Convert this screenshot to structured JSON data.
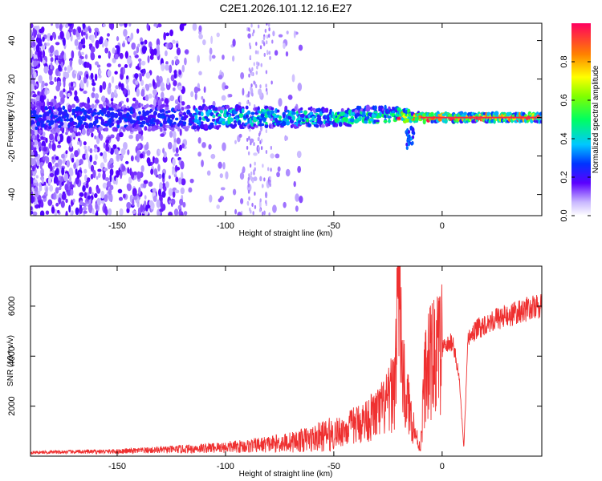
{
  "title": "C2E1.2026.101.12.16.E27",
  "colors": {
    "snr_line": "#ef3030",
    "axis": "#000000",
    "background": "#ffffff"
  },
  "chart_data": [
    {
      "type": "heatmap",
      "title": "C2E1.2026.101.12.16.E27",
      "xlabel": "Height of straight line (km)",
      "ylabel": "Frequency (Hz)",
      "xlim": [
        -190,
        46
      ],
      "ylim": [
        -51,
        49
      ],
      "xticks": [
        -150,
        -100,
        -50,
        0
      ],
      "xtick_labels": [
        "-150",
        "-100",
        "-50",
        "0"
      ],
      "yticks": [
        -40,
        -20,
        0,
        20,
        40
      ],
      "ytick_labels": [
        "-40",
        "-20",
        "0",
        "20",
        "40"
      ],
      "colorbar": {
        "label": "Normalized spectral amplitude",
        "range": [
          0.0,
          1.0
        ],
        "ticks": [
          0.0,
          0.2,
          0.4,
          0.6,
          0.8
        ],
        "tick_labels": [
          "0.0",
          "0.2",
          "0.4",
          "0.6",
          "0.8"
        ],
        "colormap": "rainbow"
      },
      "description_values": {
        "signal_center_frequency_hz": 0,
        "signal_band_halfwidth_hz": 3,
        "noise_extends_to_km": -115,
        "peak_amplitude_region_km": [
          -15,
          46
        ]
      }
    },
    {
      "type": "line",
      "title": "",
      "xlabel": "Height of straight line (km)",
      "ylabel": "SNR (10 * v/v)",
      "xlim": [
        -190,
        46
      ],
      "ylim": [
        0,
        7600
      ],
      "xticks": [
        -150,
        -100,
        -50,
        0
      ],
      "xtick_labels": [
        "-150",
        "-100",
        "-50",
        "0"
      ],
      "yticks": [
        2000,
        4000,
        6000
      ],
      "ytick_labels": [
        "2000",
        "4000",
        "6000"
      ],
      "series": [
        {
          "name": "SNR",
          "x": [
            -190,
            -180,
            -170,
            -160,
            -150,
            -140,
            -130,
            -120,
            -110,
            -100,
            -90,
            -80,
            -70,
            -60,
            -50,
            -45,
            -40,
            -35,
            -30,
            -25,
            -22,
            -20,
            -18,
            -15,
            -12,
            -10,
            -8,
            -5,
            -2,
            0,
            2,
            5,
            8,
            10,
            12,
            15,
            20,
            25,
            30,
            35,
            40,
            46
          ],
          "y": [
            150,
            160,
            170,
            180,
            190,
            220,
            250,
            280,
            320,
            360,
            400,
            480,
            560,
            700,
            900,
            1050,
            1250,
            1450,
            1700,
            2100,
            2800,
            7400,
            3000,
            1800,
            800,
            300,
            3200,
            3800,
            4100,
            4300,
            4400,
            4600,
            3000,
            300,
            4700,
            5000,
            5300,
            5500,
            5600,
            5750,
            5900,
            6000
          ]
        }
      ]
    }
  ]
}
